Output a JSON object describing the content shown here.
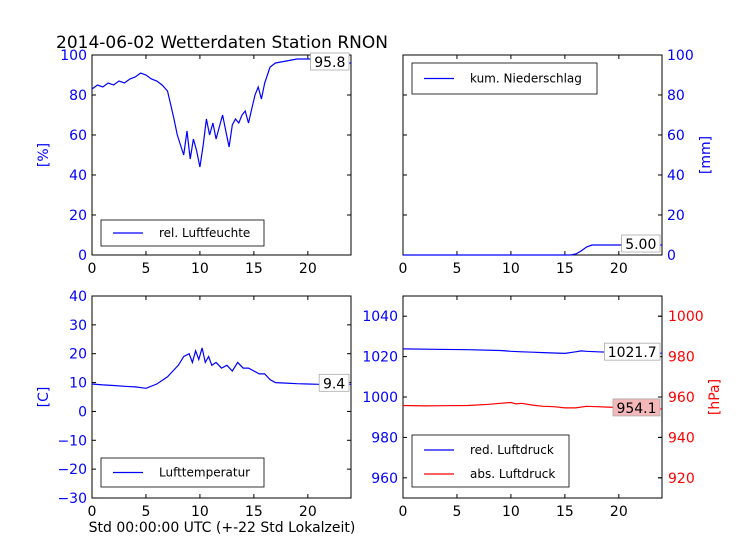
{
  "title": "2014-06-02 Wetterdaten Station RNON",
  "xlabel": "Std 00:00:00 UTC (+-22 Std Lokalzeit)",
  "colors": {
    "blue": "#0000ff",
    "red": "#ff0000",
    "black": "#000000",
    "red_box": "#f4b8b8"
  },
  "chart_data": [
    {
      "id": "humidity",
      "type": "line",
      "ylabel": "[%]",
      "ylabel_side": "left",
      "xlim": [
        0,
        24
      ],
      "ylim": [
        0,
        100
      ],
      "xticks": [
        0,
        5,
        10,
        15,
        20
      ],
      "yticks": [
        0,
        20,
        40,
        60,
        80,
        100
      ],
      "legend_position": "lower-left",
      "series": [
        {
          "name": "rel. Luftfeuchte",
          "color": "#0000ff",
          "axis": "left",
          "x": [
            0,
            0.5,
            1,
            1.5,
            2,
            2.5,
            3,
            3.5,
            4,
            4.5,
            5,
            5.5,
            6,
            6.5,
            7,
            7.3,
            7.6,
            7.9,
            8.2,
            8.5,
            8.8,
            9.1,
            9.4,
            9.7,
            10,
            10.3,
            10.6,
            10.9,
            11.2,
            11.5,
            11.8,
            12.1,
            12.4,
            12.7,
            13,
            13.3,
            13.6,
            13.9,
            14.2,
            14.5,
            14.8,
            15.1,
            15.4,
            15.7,
            16,
            16.5,
            17,
            18,
            19,
            20,
            21,
            22,
            23,
            24
          ],
          "y": [
            83,
            85,
            84,
            86,
            85,
            87,
            86,
            88,
            89,
            91,
            90,
            88,
            87,
            85,
            82,
            75,
            68,
            60,
            55,
            50,
            62,
            48,
            58,
            52,
            44,
            55,
            68,
            60,
            66,
            58,
            64,
            70,
            62,
            54,
            65,
            68,
            66,
            70,
            72,
            66,
            73,
            80,
            84,
            78,
            86,
            94,
            96,
            97,
            98,
            98,
            98,
            97,
            96,
            96
          ],
          "last_label": "95.8"
        }
      ]
    },
    {
      "id": "precipitation",
      "type": "line",
      "ylabel": "[mm]",
      "ylabel_side": "right",
      "xlim": [
        0,
        24
      ],
      "ylim": [
        0,
        100
      ],
      "xticks": [
        0,
        5,
        10,
        15,
        20
      ],
      "yticks": [
        0,
        20,
        40,
        60,
        80,
        100
      ],
      "legend_position": "top-left",
      "series": [
        {
          "name": "kum. Niederschlag",
          "color": "#0000ff",
          "axis": "right",
          "x": [
            0,
            15.5,
            16,
            16.5,
            17,
            17.5,
            24
          ],
          "y": [
            0,
            0,
            0.5,
            2,
            4,
            5,
            5
          ],
          "last_label": "5.00"
        }
      ]
    },
    {
      "id": "temperature",
      "type": "line",
      "ylabel": "[C]",
      "ylabel_side": "left",
      "xlim": [
        0,
        24
      ],
      "ylim": [
        -30,
        40
      ],
      "xticks": [
        0,
        5,
        10,
        15,
        20
      ],
      "yticks": [
        -30,
        -20,
        -10,
        0,
        10,
        20,
        30,
        40
      ],
      "legend_position": "lower-left",
      "series": [
        {
          "name": "Lufttemperatur",
          "color": "#0000ff",
          "axis": "left",
          "x": [
            0,
            1,
            2,
            3,
            4,
            5,
            6,
            7,
            7.5,
            8,
            8.5,
            9,
            9.3,
            9.6,
            9.9,
            10.2,
            10.5,
            10.8,
            11.1,
            11.5,
            12,
            12.5,
            13,
            13.5,
            14,
            14.5,
            15,
            15.5,
            16,
            16.5,
            17,
            18,
            19,
            20,
            21,
            22,
            23,
            24
          ],
          "y": [
            9.5,
            9.2,
            9,
            8.7,
            8.5,
            8,
            9.5,
            12,
            14,
            16,
            19,
            20,
            17,
            21,
            18,
            22,
            17,
            19,
            16,
            17,
            15,
            16,
            14,
            17,
            15,
            15,
            14,
            13,
            13,
            11,
            10,
            9.8,
            9.6,
            9.5,
            9.4,
            9.4,
            9.4,
            9.4
          ],
          "last_label": "9.4"
        }
      ]
    },
    {
      "id": "pressure",
      "type": "line",
      "ylabel": "[hPa]",
      "ylabel_side": "right",
      "xlim": [
        0,
        24
      ],
      "ylim": [
        950,
        1050
      ],
      "ylim_right": [
        910,
        1010
      ],
      "xticks": [
        0,
        5,
        10,
        15,
        20
      ],
      "yticks": [
        960,
        980,
        1000,
        1020,
        1040
      ],
      "yticks_right": [
        920,
        940,
        960,
        980,
        1000
      ],
      "legend_position": "lower-left",
      "series": [
        {
          "name": "red. Luftdruck",
          "color": "#0000ff",
          "axis": "left",
          "x": [
            0,
            3,
            6,
            9,
            10,
            11,
            12,
            13,
            14,
            15,
            16,
            16.5,
            17,
            18,
            19,
            20,
            21,
            22,
            23,
            24
          ],
          "y": [
            1023.8,
            1023.6,
            1023.4,
            1023,
            1022.6,
            1022.4,
            1022.2,
            1022,
            1021.8,
            1021.6,
            1022.4,
            1022.8,
            1022.6,
            1022.4,
            1022.2,
            1022,
            1021.8,
            1021.7,
            1021.6,
            1021.7
          ],
          "last_label": "1021.7"
        },
        {
          "name": "abs. Luftdruck",
          "color": "#ff0000",
          "axis": "right",
          "x": [
            0,
            2,
            4,
            6,
            8,
            9,
            10,
            10.5,
            11,
            12,
            13,
            14,
            15,
            16,
            17,
            18,
            19,
            20,
            21,
            22,
            23,
            24
          ],
          "y": [
            955.8,
            955.6,
            955.7,
            955.8,
            956.4,
            956.9,
            957.3,
            956.6,
            956.9,
            956.0,
            955.4,
            955.2,
            954.6,
            954.6,
            955.4,
            955.2,
            955.0,
            954.8,
            954.6,
            954.4,
            954.2,
            954.1
          ],
          "last_label": "954.1"
        }
      ]
    }
  ]
}
